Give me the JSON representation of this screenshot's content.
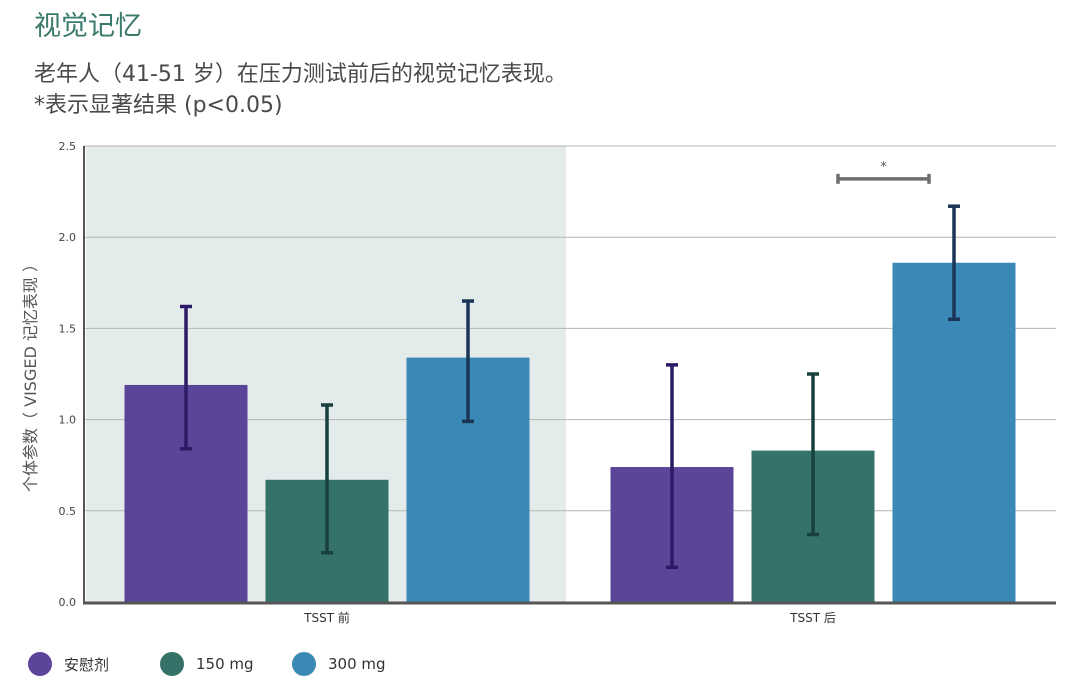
{
  "title": "视觉记忆",
  "subtitle_line1": "老年人（41-51 岁）在压力测试前后的视觉记忆表现。",
  "subtitle_line2": "*表示显著结果 (p<0.05)",
  "chart_data": {
    "type": "bar",
    "categories": [
      "TSST 前",
      "TSST 后"
    ],
    "ylabel": "个体参数（ VISGED 记忆表现 ）",
    "xlabel": "",
    "ylim": [
      0,
      2.5
    ],
    "yticks": [
      "0.0",
      "0.5",
      "1.0",
      "1.5",
      "2.0",
      "2.5"
    ],
    "series": [
      {
        "name": "安慰剂",
        "color": "#5a4598",
        "errorbar_color": "#2d1a66",
        "values": [
          1.19,
          0.74
        ],
        "err_low": [
          0.84,
          0.19
        ],
        "err_high": [
          1.62,
          1.3
        ]
      },
      {
        "name": "150 mg",
        "color": "#34726a",
        "errorbar_color": "#17403e",
        "values": [
          0.67,
          0.83
        ],
        "err_low": [
          0.27,
          0.37
        ],
        "err_high": [
          1.08,
          1.25
        ]
      },
      {
        "name": "300 mg",
        "color": "#3a88b6",
        "errorbar_color": "#1b3556",
        "values": [
          1.34,
          1.86
        ],
        "err_low": [
          0.99,
          1.55
        ],
        "err_high": [
          1.65,
          2.17
        ]
      }
    ],
    "grid": true,
    "highlighted_category": "TSST 前",
    "highlight_color": "#e3eceb",
    "significance": [
      {
        "category": "TSST 后",
        "from_series": "150 mg",
        "to_series": "300 mg",
        "label": "*",
        "y": 2.32
      }
    ],
    "legend_position": "bottom-left"
  }
}
